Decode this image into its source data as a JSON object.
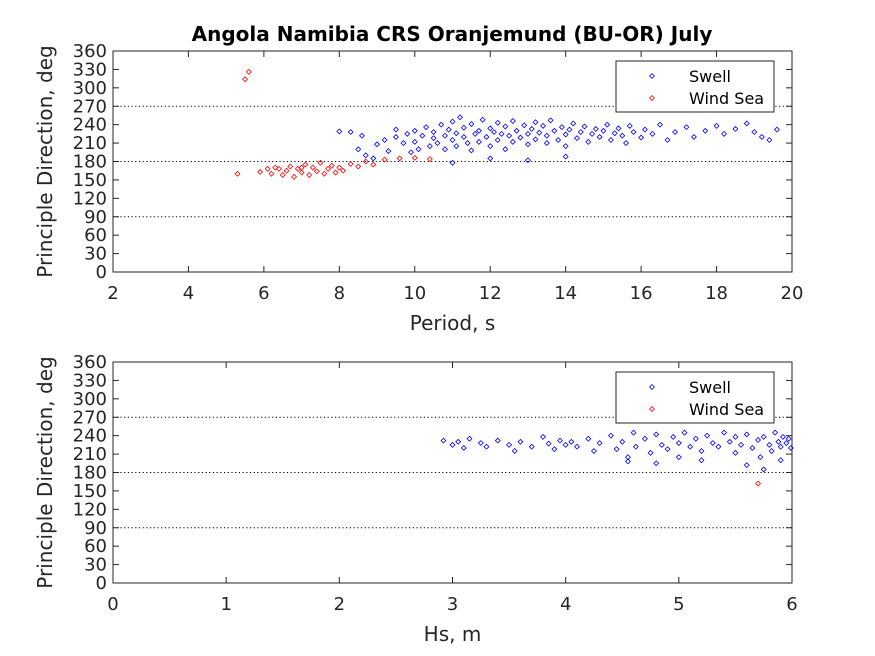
{
  "figure": {
    "title": "Angola Namibia CRS Oranjemund (BU-OR) July"
  },
  "colors": {
    "swell": "#0000ff",
    "wind_sea": "#ff0000",
    "axis": "#262626"
  },
  "chart_data": [
    {
      "type": "scatter",
      "title": "Angola Namibia CRS Oranjemund (BU-OR) July",
      "xlabel": "Period, s",
      "ylabel": "Principle Direction, deg",
      "xlim": [
        2,
        20
      ],
      "ylim": [
        0,
        360
      ],
      "xticks": [
        2,
        4,
        6,
        8,
        10,
        12,
        14,
        16,
        18,
        20
      ],
      "xtick_labels": [
        "2",
        "4",
        "6",
        "8",
        "10",
        "12",
        "14",
        "16",
        "18",
        "20"
      ],
      "yticks": [
        0,
        30,
        60,
        90,
        120,
        150,
        180,
        210,
        240,
        270,
        300,
        330,
        360
      ],
      "ytick_labels": [
        "0",
        "30",
        "60",
        "90",
        "120",
        "150",
        "180",
        "210",
        "240",
        "270",
        "300",
        "330",
        "360"
      ],
      "reference_lines": [
        90,
        180,
        270
      ],
      "legend": {
        "position": "top-right",
        "entries": [
          "Swell",
          "Wind Sea"
        ]
      },
      "series": [
        {
          "name": "Swell",
          "color": "#0000ff",
          "marker": "diamond",
          "points": [
            [
              8.0,
              229
            ],
            [
              8.3,
              228
            ],
            [
              8.6,
              222
            ],
            [
              8.5,
              200
            ],
            [
              8.7,
              190
            ],
            [
              8.9,
              185
            ],
            [
              9.0,
              208
            ],
            [
              9.2,
              215
            ],
            [
              9.3,
              197
            ],
            [
              9.5,
              220
            ],
            [
              9.5,
              232
            ],
            [
              9.7,
              210
            ],
            [
              9.8,
              225
            ],
            [
              9.9,
              195
            ],
            [
              10.0,
              230
            ],
            [
              10.0,
              212
            ],
            [
              10.1,
              200
            ],
            [
              10.2,
              222
            ],
            [
              10.3,
              236
            ],
            [
              10.4,
              205
            ],
            [
              10.5,
              218
            ],
            [
              10.5,
              228
            ],
            [
              10.6,
              210
            ],
            [
              10.7,
              240
            ],
            [
              10.8,
              222
            ],
            [
              10.8,
              200
            ],
            [
              10.9,
              232
            ],
            [
              11.0,
              215
            ],
            [
              11.0,
              245
            ],
            [
              11.1,
              226
            ],
            [
              11.1,
              205
            ],
            [
              11.2,
              252
            ],
            [
              11.3,
              220
            ],
            [
              11.3,
              235
            ],
            [
              11.4,
              210
            ],
            [
              11.5,
              241
            ],
            [
              11.5,
              198
            ],
            [
              11.6,
              225
            ],
            [
              11.7,
              230
            ],
            [
              11.7,
              212
            ],
            [
              11.8,
              248
            ],
            [
              11.9,
              220
            ],
            [
              12.0,
              234
            ],
            [
              12.0,
              205
            ],
            [
              12.1,
              228
            ],
            [
              12.2,
              243
            ],
            [
              12.2,
              215
            ],
            [
              12.3,
              225
            ],
            [
              12.4,
              237
            ],
            [
              12.4,
              200
            ],
            [
              12.5,
              222
            ],
            [
              12.6,
              246
            ],
            [
              12.6,
              212
            ],
            [
              12.7,
              230
            ],
            [
              12.8,
              219
            ],
            [
              12.9,
              239
            ],
            [
              13.0,
              225
            ],
            [
              13.0,
              208
            ],
            [
              13.1,
              233
            ],
            [
              13.2,
              244
            ],
            [
              13.2,
              216
            ],
            [
              13.3,
              227
            ],
            [
              13.4,
              238
            ],
            [
              13.5,
              210
            ],
            [
              13.5,
              222
            ],
            [
              13.6,
              247
            ],
            [
              13.7,
              230
            ],
            [
              13.8,
              215
            ],
            [
              13.9,
              236
            ],
            [
              14.0,
              224
            ],
            [
              14.0,
              205
            ],
            [
              14.1,
              232
            ],
            [
              14.2,
              242
            ],
            [
              14.3,
              218
            ],
            [
              14.4,
              228
            ],
            [
              14.5,
              237
            ],
            [
              14.6,
              212
            ],
            [
              14.7,
              225
            ],
            [
              14.8,
              233
            ],
            [
              14.9,
              220
            ],
            [
              15.0,
              230
            ],
            [
              15.1,
              240
            ],
            [
              15.2,
              215
            ],
            [
              15.3,
              226
            ],
            [
              15.4,
              234
            ],
            [
              15.5,
              222
            ],
            [
              15.6,
              210
            ],
            [
              15.7,
              238
            ],
            [
              15.8,
              228
            ],
            [
              16.0,
              219
            ],
            [
              16.1,
              232
            ],
            [
              16.3,
              225
            ],
            [
              16.5,
              240
            ],
            [
              16.7,
              215
            ],
            [
              16.9,
              228
            ],
            [
              17.2,
              236
            ],
            [
              17.4,
              220
            ],
            [
              17.7,
              230
            ],
            [
              18.0,
              238
            ],
            [
              18.2,
              225
            ],
            [
              18.5,
              233
            ],
            [
              18.8,
              242
            ],
            [
              19.0,
              228
            ],
            [
              19.2,
              220
            ],
            [
              19.4,
              215
            ],
            [
              19.6,
              232
            ],
            [
              11.0,
              178
            ],
            [
              12.0,
              185
            ],
            [
              13.0,
              182
            ],
            [
              14.0,
              188
            ]
          ]
        },
        {
          "name": "Wind Sea",
          "color": "#ff0000",
          "marker": "diamond",
          "points": [
            [
              5.3,
              160
            ],
            [
              5.5,
              314
            ],
            [
              5.6,
              326
            ],
            [
              5.9,
              163
            ],
            [
              6.1,
              168
            ],
            [
              6.2,
              160
            ],
            [
              6.3,
              170
            ],
            [
              6.5,
              158
            ],
            [
              6.6,
              165
            ],
            [
              6.7,
              172
            ],
            [
              6.8,
              155
            ],
            [
              6.9,
              168
            ],
            [
              7.0,
              162
            ],
            [
              7.1,
              175
            ],
            [
              7.2,
              158
            ],
            [
              7.3,
              170
            ],
            [
              7.4,
              164
            ],
            [
              7.5,
              178
            ],
            [
              7.6,
              160
            ],
            [
              7.7,
              168
            ],
            [
              7.8,
              173
            ],
            [
              7.9,
              162
            ],
            [
              8.0,
              170
            ],
            [
              8.1,
              165
            ],
            [
              8.3,
              176
            ],
            [
              8.5,
              172
            ],
            [
              8.7,
              180
            ],
            [
              8.9,
              175
            ],
            [
              9.2,
              183
            ],
            [
              9.6,
              185
            ],
            [
              10.0,
              186
            ],
            [
              10.4,
              184
            ],
            [
              6.4,
              168
            ],
            [
              7.0,
              170
            ]
          ]
        }
      ]
    },
    {
      "type": "scatter",
      "title": "",
      "xlabel": "Hs, m",
      "ylabel": "Principle Direction, deg",
      "xlim": [
        0,
        6
      ],
      "ylim": [
        0,
        360
      ],
      "xticks": [
        0,
        1,
        2,
        3,
        4,
        5,
        6
      ],
      "xtick_labels": [
        "0",
        "1",
        "2",
        "3",
        "4",
        "5",
        "6"
      ],
      "yticks": [
        0,
        30,
        60,
        90,
        120,
        150,
        180,
        210,
        240,
        270,
        300,
        330,
        360
      ],
      "ytick_labels": [
        "0",
        "30",
        "60",
        "90",
        "120",
        "150",
        "180",
        "210",
        "240",
        "270",
        "300",
        "330",
        "360"
      ],
      "reference_lines": [
        90,
        180,
        270
      ],
      "legend": {
        "position": "top-right",
        "entries": [
          "Swell",
          "Wind Sea"
        ]
      },
      "series": [
        {
          "name": "Swell",
          "color": "#0000ff",
          "marker": "diamond",
          "points": [
            [
              2.92,
              232
            ],
            [
              3.0,
              225
            ],
            [
              3.05,
              230
            ],
            [
              3.1,
              220
            ],
            [
              3.15,
              235
            ],
            [
              3.25,
              228
            ],
            [
              3.3,
              222
            ],
            [
              3.4,
              232
            ],
            [
              3.5,
              225
            ],
            [
              3.55,
              215
            ],
            [
              3.6,
              230
            ],
            [
              3.7,
              222
            ],
            [
              3.8,
              238
            ],
            [
              3.85,
              227
            ],
            [
              3.9,
              218
            ],
            [
              3.95,
              232
            ],
            [
              4.0,
              225
            ],
            [
              4.05,
              230
            ],
            [
              4.1,
              222
            ],
            [
              4.2,
              235
            ],
            [
              4.25,
              215
            ],
            [
              4.3,
              228
            ],
            [
              4.4,
              240
            ],
            [
              4.45,
              218
            ],
            [
              4.5,
              230
            ],
            [
              4.55,
              205
            ],
            [
              4.6,
              245
            ],
            [
              4.62,
              222
            ],
            [
              4.7,
              235
            ],
            [
              4.75,
              212
            ],
            [
              4.8,
              242
            ],
            [
              4.85,
              225
            ],
            [
              4.9,
              218
            ],
            [
              4.95,
              238
            ],
            [
              5.0,
              228
            ],
            [
              5.0,
              205
            ],
            [
              5.05,
              245
            ],
            [
              5.1,
              222
            ],
            [
              5.15,
              235
            ],
            [
              5.2,
              215
            ],
            [
              5.25,
              240
            ],
            [
              5.3,
              228
            ],
            [
              5.35,
              222
            ],
            [
              5.4,
              245
            ],
            [
              5.45,
              230
            ],
            [
              5.5,
              212
            ],
            [
              5.5,
              238
            ],
            [
              5.55,
              225
            ],
            [
              5.6,
              242
            ],
            [
              5.65,
              220
            ],
            [
              5.7,
              233
            ],
            [
              5.72,
              205
            ],
            [
              5.75,
              238
            ],
            [
              5.8,
              225
            ],
            [
              5.82,
              215
            ],
            [
              5.85,
              245
            ],
            [
              5.88,
              230
            ],
            [
              5.9,
              222
            ],
            [
              5.92,
              238
            ],
            [
              5.95,
              228
            ],
            [
              5.97,
              235
            ],
            [
              5.99,
              220
            ],
            [
              4.55,
              198
            ],
            [
              4.8,
              195
            ],
            [
              5.2,
              200
            ],
            [
              5.6,
              192
            ],
            [
              5.75,
              185
            ],
            [
              5.9,
              200
            ]
          ]
        },
        {
          "name": "Wind Sea",
          "color": "#ff0000",
          "marker": "diamond",
          "points": [
            [
              5.7,
              162
            ]
          ]
        }
      ]
    }
  ]
}
